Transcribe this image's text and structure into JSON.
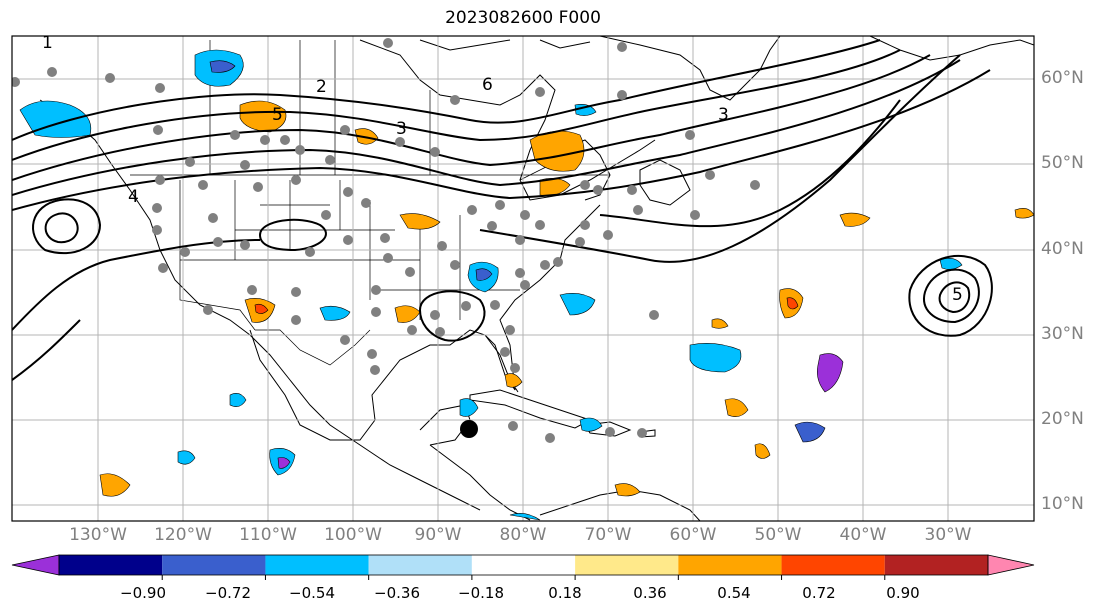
{
  "title": "2023082600 F000",
  "map": {
    "region": "North America and North Atlantic",
    "projection": "plate carree",
    "gridlines": true,
    "contour_labels": [
      "1",
      "2",
      "3",
      "4",
      "5",
      "6"
    ],
    "storm_marker": {
      "lon": -86,
      "lat": 19
    },
    "lat_labels": [
      "60°N",
      "50°N",
      "40°N",
      "30°N",
      "20°N",
      "10°N"
    ],
    "lon_labels": [
      "130°W",
      "120°W",
      "110°W",
      "100°W",
      "90°W",
      "80°W",
      "70°W",
      "60°W",
      "50°W",
      "40°W",
      "30°W"
    ]
  },
  "colorbar": {
    "ticks": [
      "−0.90",
      "−0.72",
      "−0.54",
      "−0.36",
      "−0.18",
      "0.18",
      "0.36",
      "0.54",
      "0.72",
      "0.90"
    ],
    "colors": [
      "#9b30d9",
      "#00008b",
      "#3a5fcd",
      "#00bfff",
      "#b0e0f8",
      "#ffffff",
      "#ffe98a",
      "#ffa500",
      "#ff4500",
      "#b22222",
      "#ff86b0"
    ],
    "extend": "both"
  }
}
